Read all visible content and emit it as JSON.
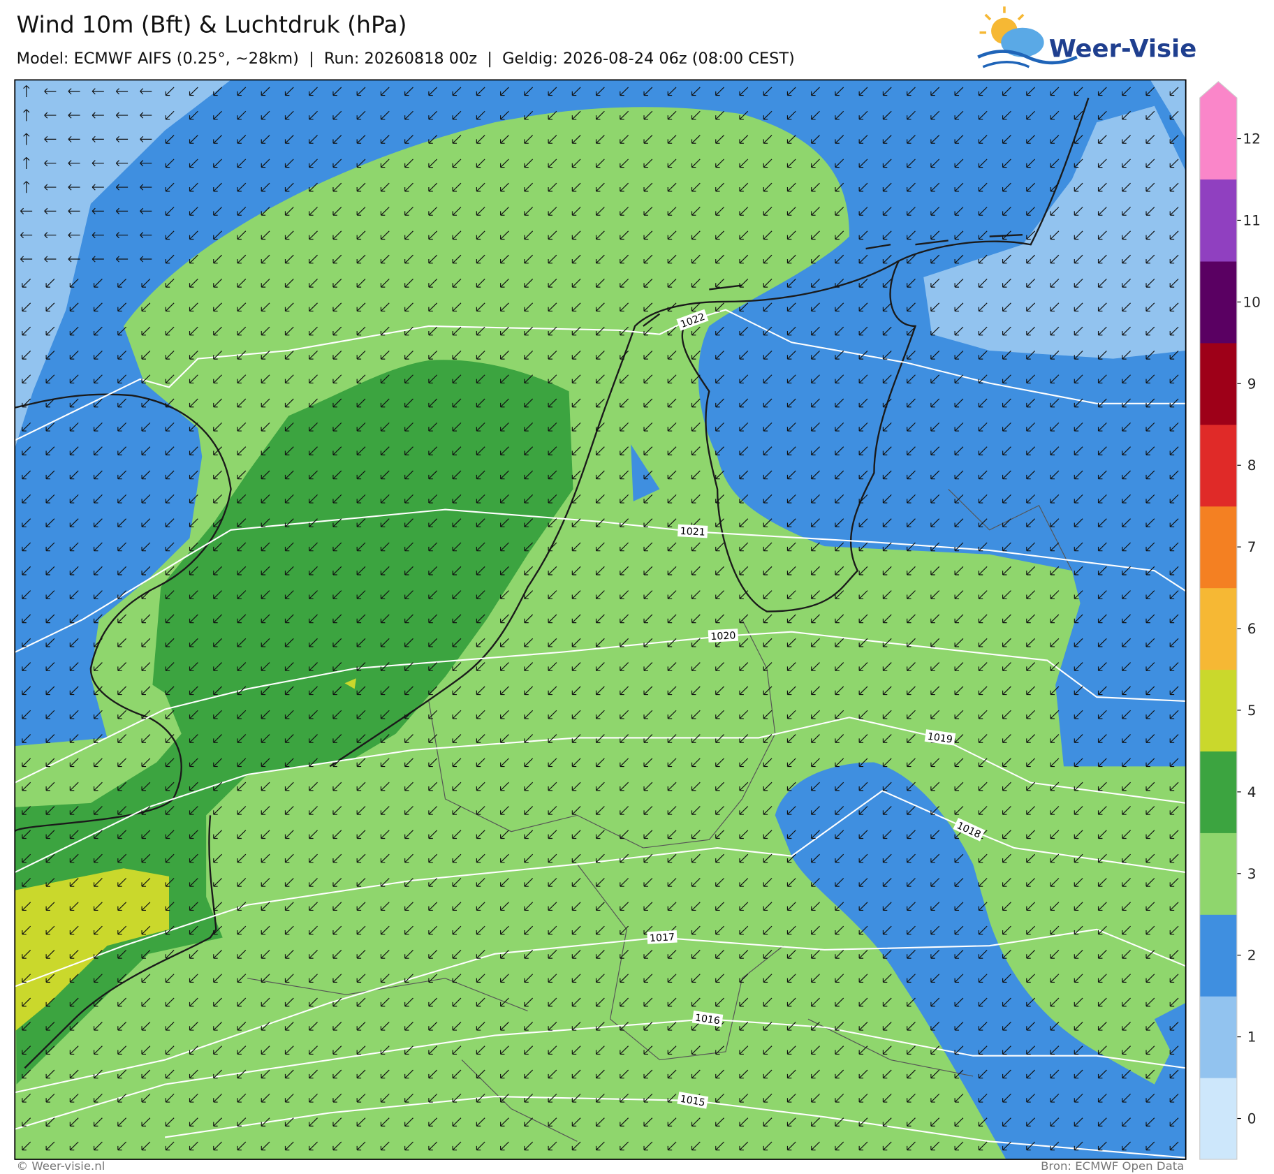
{
  "header": {
    "title": "Wind 10m (Bft) & Luchtdruk (hPa)",
    "subtitle": "Model: ECMWF AIFS (0.25°, ~28km)  |  Run: 20260818 00z  |  Geldig: 2026-08-24 06z (08:00 CEST)"
  },
  "logo": {
    "text": "Weer-Visie"
  },
  "colorbar": {
    "ticks": [
      0,
      1,
      2,
      3,
      4,
      5,
      6,
      7,
      8,
      9,
      10,
      11,
      12
    ],
    "colors": [
      "#cde7fb",
      "#92c3ef",
      "#3f8fe0",
      "#8fd66d",
      "#3ca440",
      "#cad82c",
      "#f6b834",
      "#f48022",
      "#e02a28",
      "#9e0018",
      "#5a0062",
      "#9040c0",
      "#fa86c9"
    ]
  },
  "isobars": [
    {
      "label": "1022"
    },
    {
      "label": "1021"
    },
    {
      "label": "1020"
    },
    {
      "label": "1019"
    },
    {
      "label": "1018"
    },
    {
      "label": "1017"
    },
    {
      "label": "1016"
    },
    {
      "label": "1015"
    }
  ],
  "footer": {
    "left": "© Weer-visie.nl",
    "right": "Bron: ECMWF Open Data"
  }
}
